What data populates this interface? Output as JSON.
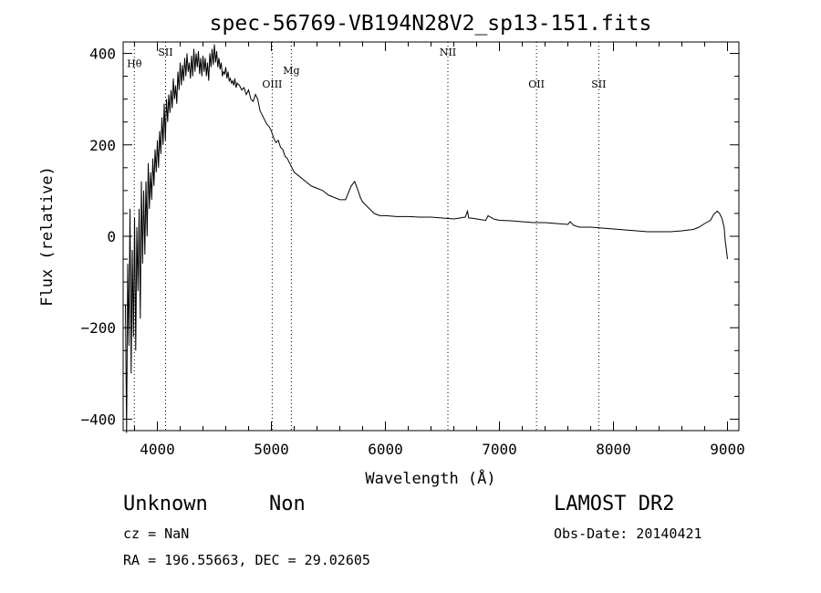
{
  "chart_data": {
    "type": "line",
    "title": "spec-56769-VB194N28V2_sp13-151.fits",
    "xlabel": "Wavelength (Å)",
    "ylabel": "Flux (relative)",
    "xlim": [
      3700,
      9100
    ],
    "ylim": [
      -425,
      425
    ],
    "xticks": [
      4000,
      5000,
      6000,
      7000,
      8000,
      9000
    ],
    "yticks": [
      -400,
      -200,
      0,
      200,
      400
    ],
    "grid": false,
    "line_color": "#000000",
    "lines": [
      {
        "label": "Hθ",
        "x": 3798,
        "label_y": 370
      },
      {
        "label": "SII",
        "x": 4072,
        "label_y": 395
      },
      {
        "label": "OIII",
        "x": 5007,
        "label_y": 325
      },
      {
        "label": "Mg",
        "x": 5175,
        "label_y": 355
      },
      {
        "label": "NII",
        "x": 6548,
        "label_y": 395
      },
      {
        "label": "OII",
        "x": 7325,
        "label_y": 325
      },
      {
        "label": "SII",
        "x": 7871,
        "label_y": 325
      }
    ],
    "series": [
      {
        "x": [
          3720,
          3730,
          3740,
          3750,
          3760,
          3770,
          3780,
          3790,
          3800,
          3810,
          3820,
          3830,
          3840,
          3850,
          3860,
          3870,
          3880,
          3890,
          3900,
          3910,
          3920,
          3930,
          3940,
          3950,
          3960,
          3970,
          3980,
          3990,
          4000,
          4010,
          4020,
          4030,
          4040,
          4050,
          4060,
          4070,
          4080,
          4090,
          4100,
          4110,
          4120,
          4130,
          4140,
          4150,
          4160,
          4170,
          4180,
          4190,
          4200,
          4210,
          4220,
          4230,
          4240,
          4250,
          4260,
          4270,
          4280,
          4290,
          4300,
          4310,
          4320,
          4330,
          4340,
          4350,
          4360,
          4370,
          4380,
          4390,
          4400,
          4410,
          4420,
          4430,
          4440,
          4450,
          4460,
          4470,
          4480,
          4490,
          4500,
          4510,
          4520,
          4530,
          4540,
          4550,
          4560,
          4570,
          4580,
          4590,
          4600,
          4610,
          4620,
          4630,
          4640,
          4650,
          4660,
          4670,
          4680,
          4690,
          4700,
          4720,
          4740,
          4760,
          4780,
          4800,
          4820,
          4840,
          4860,
          4880,
          4900,
          4920,
          4940,
          4960,
          4980,
          5000,
          5020,
          5040,
          5060,
          5080,
          5100,
          5120,
          5140,
          5160,
          5180,
          5200,
          5250,
          5300,
          5350,
          5400,
          5450,
          5500,
          5550,
          5600,
          5650,
          5700,
          5730,
          5760,
          5780,
          5800,
          5820,
          5840,
          5860,
          5880,
          5900,
          5950,
          6000,
          6100,
          6200,
          6300,
          6400,
          6500,
          6600,
          6650,
          6700,
          6720,
          6730,
          6750,
          6800,
          6850,
          6880,
          6900,
          6950,
          7000,
          7100,
          7200,
          7300,
          7400,
          7500,
          7600,
          7620,
          7650,
          7700,
          7800,
          7900,
          8000,
          8100,
          8200,
          8300,
          8400,
          8500,
          8600,
          8700,
          8750,
          8800,
          8850,
          8880,
          8910,
          8930,
          8950,
          8970,
          8980,
          8990,
          9000
        ],
        "y": [
          -150,
          -430,
          -60,
          -240,
          60,
          -300,
          -30,
          -220,
          40,
          -250,
          20,
          -120,
          60,
          -180,
          120,
          -60,
          100,
          -40,
          120,
          0,
          160,
          60,
          140,
          80,
          170,
          110,
          190,
          140,
          210,
          150,
          230,
          180,
          260,
          200,
          290,
          210,
          300,
          250,
          310,
          270,
          320,
          280,
          345,
          300,
          330,
          290,
          360,
          320,
          380,
          330,
          375,
          340,
          390,
          350,
          400,
          360,
          380,
          345,
          395,
          350,
          410,
          360,
          400,
          370,
          405,
          355,
          390,
          350,
          395,
          360,
          390,
          350,
          380,
          340,
          400,
          370,
          410,
          375,
          420,
          380,
          405,
          370,
          390,
          365,
          380,
          350,
          360,
          355,
          370,
          345,
          360,
          340,
          345,
          335,
          340,
          330,
          345,
          325,
          335,
          330,
          320,
          325,
          310,
          320,
          300,
          295,
          310,
          300,
          275,
          265,
          255,
          245,
          240,
          230,
          215,
          205,
          210,
          195,
          190,
          175,
          170,
          160,
          150,
          140,
          130,
          120,
          110,
          105,
          100,
          90,
          85,
          80,
          80,
          110,
          120,
          100,
          85,
          75,
          70,
          65,
          60,
          55,
          50,
          45,
          45,
          43,
          43,
          42,
          42,
          40,
          38,
          40,
          42,
          55,
          40,
          40,
          38,
          36,
          35,
          45,
          38,
          35,
          34,
          32,
          30,
          30,
          28,
          26,
          32,
          24,
          20,
          20,
          18,
          16,
          14,
          12,
          10,
          10,
          10,
          12,
          15,
          20,
          28,
          35,
          48,
          55,
          50,
          40,
          20,
          -10,
          -30,
          -50
        ]
      }
    ]
  },
  "footer": {
    "class_label": "Unknown",
    "subclass_label": "Non",
    "survey_label": "LAMOST DR2",
    "cz_text": "cz = NaN",
    "obs_date_text": "Obs-Date: 20140421",
    "radec_text": "RA = 196.55663, DEC =  29.02605"
  }
}
